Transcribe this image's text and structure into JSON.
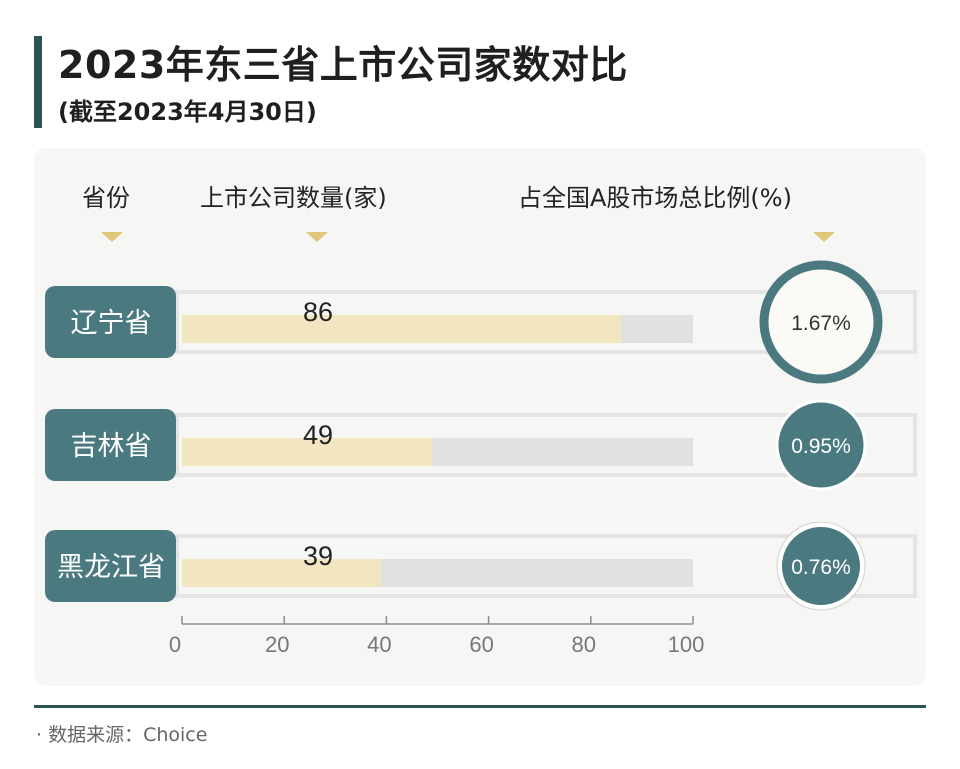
{
  "header": {
    "title": "2023年东三省上市公司家数对比",
    "subtitle": "(截至2023年4月30日)"
  },
  "columns": {
    "province": "省份",
    "count": "上市公司数量(家)",
    "share": "占全国A股市场总比例(%)"
  },
  "footer": {
    "source": "· 数据来源：Choice"
  },
  "colors": {
    "teal": "#4a7a80",
    "accent": "#e0c77b",
    "bar_fill": "#f1e6c0",
    "bar_track": "#e1e1e1",
    "dark_teal": "#2c5454"
  },
  "chart_data": {
    "type": "bar",
    "orientation": "horizontal",
    "title": "2023年东三省上市公司家数对比",
    "subtitle": "(截至2023年4月30日)",
    "categories": [
      "辽宁省",
      "吉林省",
      "黑龙江省"
    ],
    "values": [
      86,
      49,
      39
    ],
    "value_labels": [
      "86",
      "49",
      "39"
    ],
    "share_percent": [
      1.67,
      0.95,
      0.76
    ],
    "share_labels": [
      "1.67%",
      "0.95%",
      "0.76%"
    ],
    "xlim": [
      0,
      100
    ],
    "xticks": [
      0,
      20,
      40,
      60,
      80,
      100
    ],
    "xtick_labels": [
      "0",
      "20",
      "40",
      "60",
      "80",
      "100"
    ],
    "xlabel": "上市公司数量(家)",
    "ylabel": "省份",
    "grid": false
  }
}
